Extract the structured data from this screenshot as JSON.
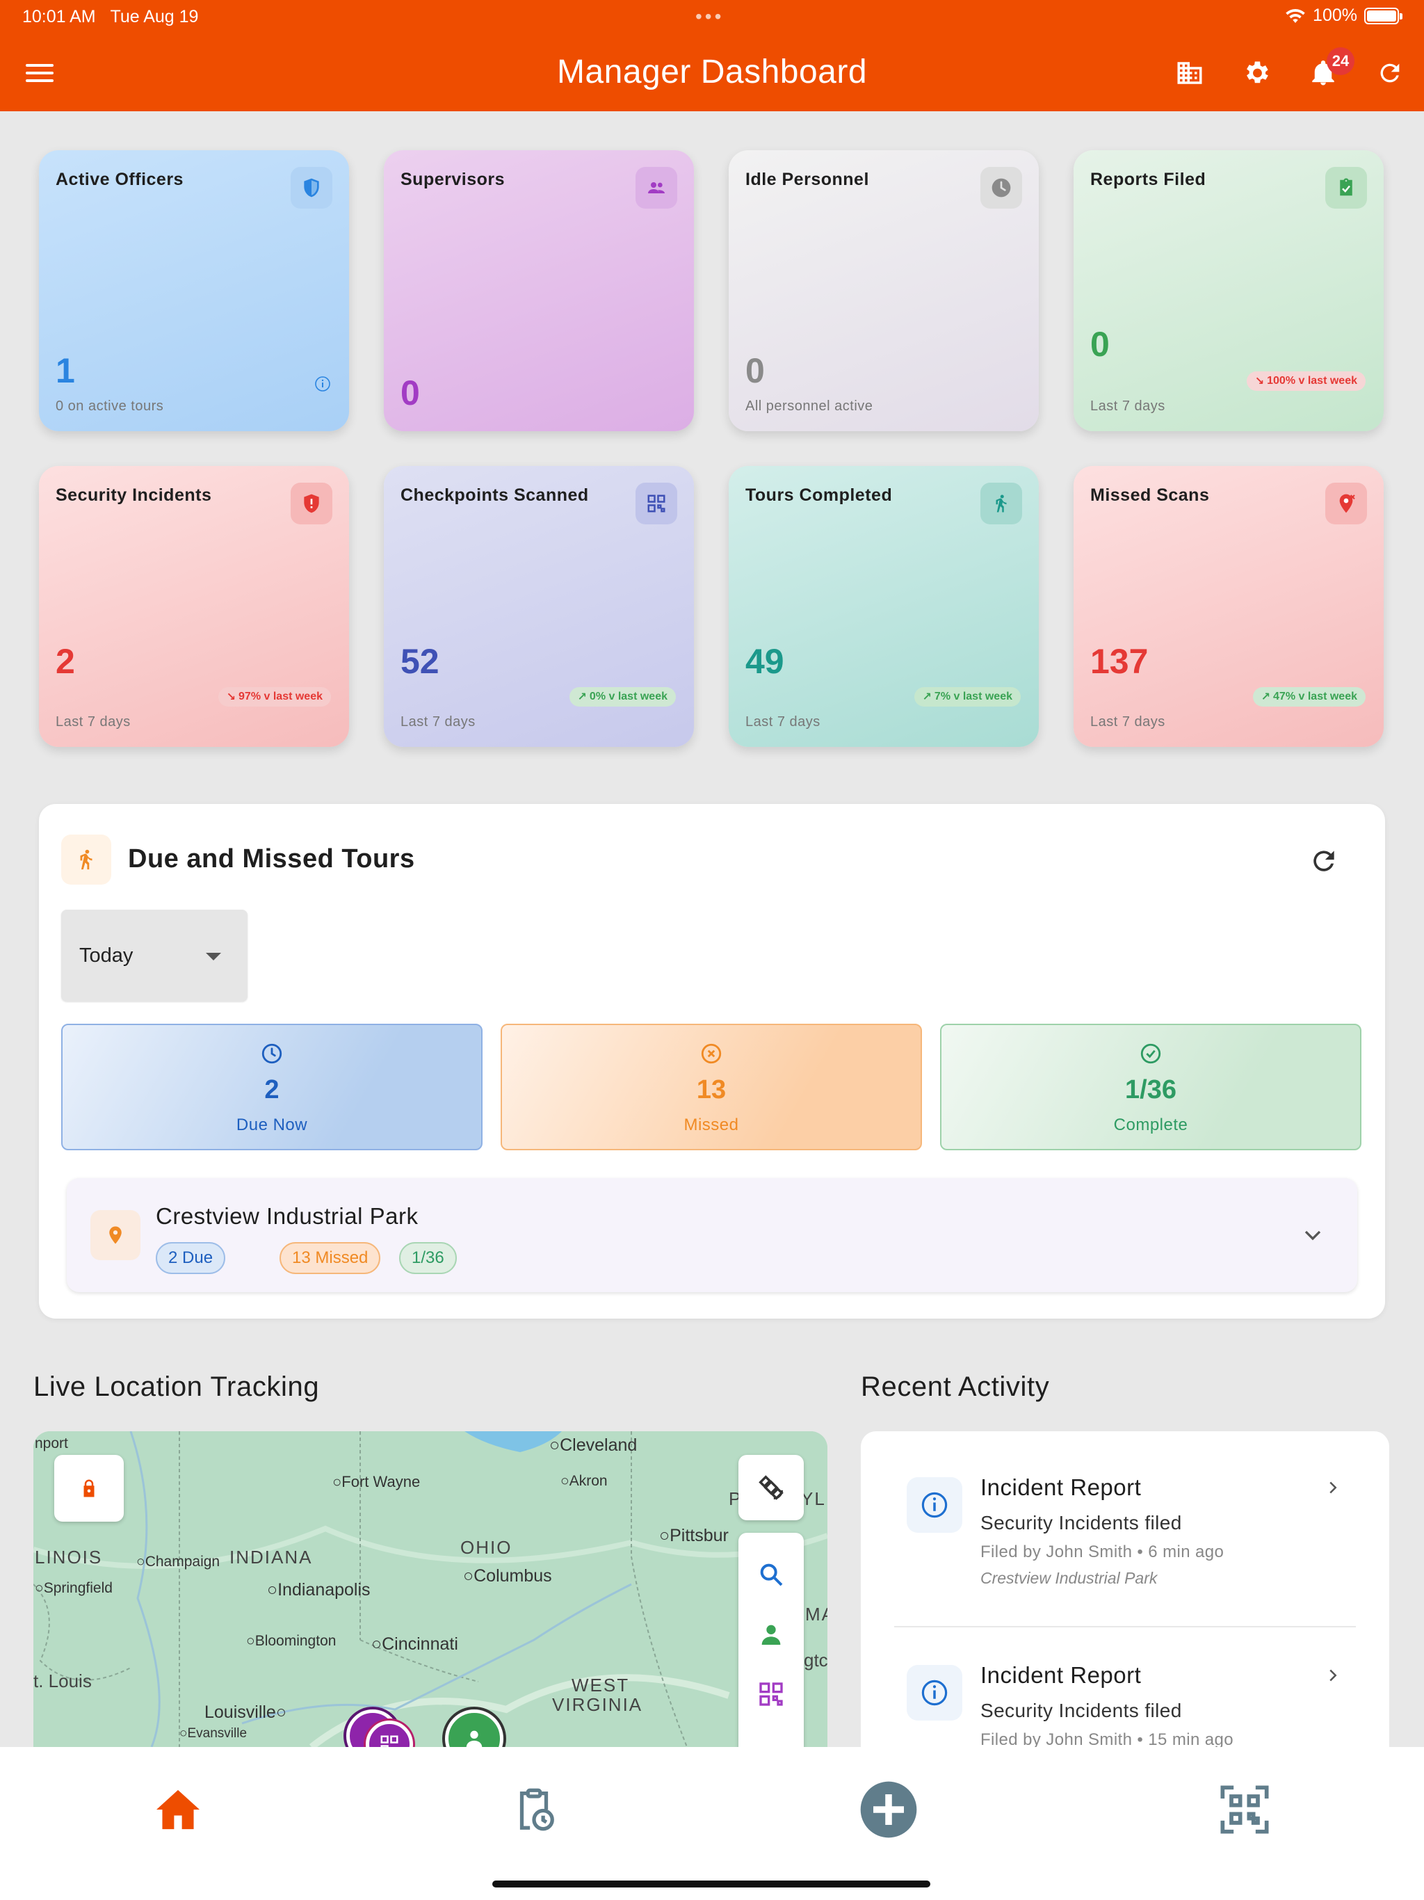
{
  "status_bar": {
    "time": "10:01 AM",
    "date": "Tue Aug 19",
    "battery": "100%"
  },
  "header": {
    "title": "Manager Dashboard",
    "notification_count": "24"
  },
  "stats": [
    {
      "title": "Active Officers",
      "value": "1",
      "subtitle": "0 on active tours",
      "trend": "",
      "color": "#2a84e0",
      "icon": "shield-icon"
    },
    {
      "title": "Supervisors",
      "value": "0",
      "subtitle": "",
      "trend": "",
      "color": "#a23cc4",
      "icon": "people-icon"
    },
    {
      "title": "Idle Personnel",
      "value": "0",
      "subtitle": "All personnel active",
      "trend": "",
      "color": "#8a8a8a",
      "icon": "clock-icon"
    },
    {
      "title": "Reports Filed",
      "value": "0",
      "subtitle": "Last 7 days",
      "trend": "100% v last week",
      "color": "#3aa354",
      "icon": "clipboard-check-icon"
    },
    {
      "title": "Security Incidents",
      "value": "2",
      "subtitle": "Last 7 days",
      "trend": "97% v last week",
      "color": "#e53935",
      "icon": "shield-alert-icon"
    },
    {
      "title": "Checkpoints Scanned",
      "value": "52",
      "subtitle": "Last 7 days",
      "trend": "0% v last week",
      "color": "#3f51b5",
      "icon": "qr-icon"
    },
    {
      "title": "Tours Completed",
      "value": "49",
      "subtitle": "Last 7 days",
      "trend": "7% v last week",
      "color": "#1b998b",
      "icon": "walk-icon"
    },
    {
      "title": "Missed Scans",
      "value": "137",
      "subtitle": "Last 7 days",
      "trend": "47% v last week",
      "color": "#e53935",
      "icon": "location-off-icon"
    }
  ],
  "tours": {
    "title": "Due and Missed Tours",
    "filter": "Today",
    "due": {
      "value": "2",
      "label": "Due Now"
    },
    "missed": {
      "value": "13",
      "label": "Missed"
    },
    "complete": {
      "value": "1/36",
      "label": "Complete"
    },
    "site": {
      "name": "Crestview Industrial Park",
      "due_chip": "2 Due",
      "missed_chip": "13 Missed",
      "complete_chip": "1/36"
    }
  },
  "map": {
    "title": "Live Location Tracking",
    "cities": [
      "Cleveland",
      "Fort Wayne",
      "Akron",
      "Pittsbur",
      "Champaign",
      "Springfield",
      "Indianapolis",
      "Columbus",
      "Bloomington",
      "Cincinnati",
      "Louisville",
      "Evansville",
      "nport"
    ],
    "states": [
      "LINOIS",
      "INDIANA",
      "OHIO",
      "WEST",
      "VIRGINIA",
      "t. Louis",
      "P",
      "YL",
      "MA",
      "gtc"
    ]
  },
  "activity": {
    "title": "Recent Activity",
    "items": [
      {
        "title": "Incident Report",
        "desc": "Security Incidents filed",
        "meta": "Filed by John Smith • 6 min ago",
        "site": "Crestview Industrial Park"
      },
      {
        "title": "Incident Report",
        "desc": "Security Incidents filed",
        "meta": "Filed by John Smith • 15 min ago",
        "site": ""
      }
    ]
  },
  "colors": {
    "accent": "#ee4d00",
    "due": "#1e5fbf",
    "missed": "#f08a24",
    "complete": "#2e9b63"
  }
}
